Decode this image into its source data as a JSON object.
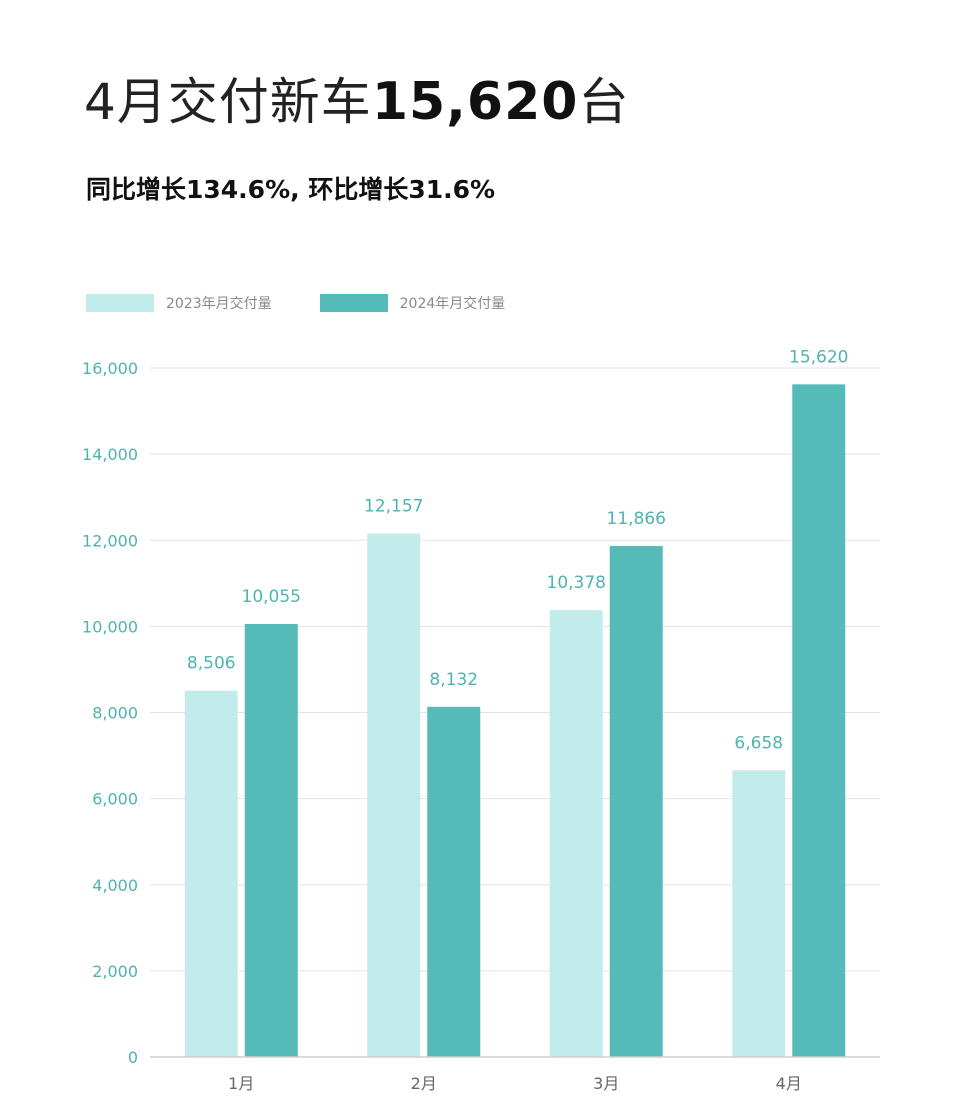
{
  "header": {
    "title_prefix": "4月交付新车",
    "title_number": "15,620",
    "title_suffix": "台",
    "subtitle": "同比增长134.6%, 环比增长31.6%"
  },
  "colors": {
    "series_2023": "#c2ebec",
    "series_2024": "#55bbb9",
    "tick_text": "#4fb3b0",
    "grid": "#e3e3e3"
  },
  "chart_data": {
    "type": "bar",
    "categories": [
      "1月",
      "2月",
      "3月",
      "4月"
    ],
    "series": [
      {
        "name": "2023年月交付量",
        "values": [
          8506,
          12157,
          10378,
          6658
        ],
        "labels": [
          "8,506",
          "12,157",
          "10,378",
          "6,658"
        ]
      },
      {
        "name": "2024年月交付量",
        "values": [
          10055,
          8132,
          11866,
          15620
        ],
        "labels": [
          "10,055",
          "8,132",
          "11,866",
          "15,620"
        ]
      }
    ],
    "ylim": [
      0,
      16000
    ],
    "yticks": [
      0,
      2000,
      4000,
      6000,
      8000,
      10000,
      12000,
      14000,
      16000
    ],
    "ytick_labels": [
      "0",
      "2,000",
      "4,000",
      "6,000",
      "8,000",
      "10,000",
      "12,000",
      "14,000",
      "16,000"
    ],
    "grid": true,
    "legend": "top-left"
  }
}
